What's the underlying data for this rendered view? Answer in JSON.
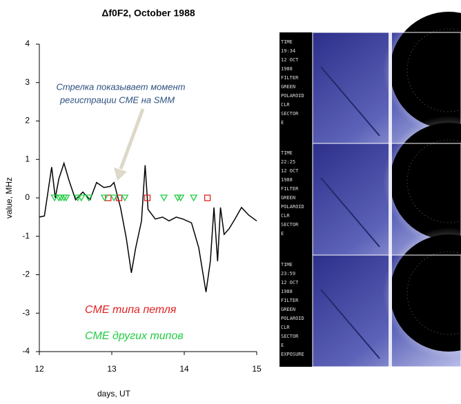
{
  "chart_data": {
    "type": "line",
    "title": "Δf0F2, October 1988",
    "x_label": "days, UT",
    "y_label": "value, MHz",
    "annotation": [
      "Стрелка показывает момент",
      "регистрации CME на SMM"
    ],
    "xlim": [
      12,
      15
    ],
    "xticks": [
      12,
      13,
      14,
      15
    ],
    "ylim": [
      -4,
      4
    ],
    "yticks": [
      -4,
      -3,
      -2,
      -1,
      0,
      1,
      2,
      3,
      4
    ],
    "series": [
      {
        "color": "#000000",
        "marker": "none",
        "x": [
          12.0,
          12.07,
          12.17,
          12.22,
          12.27,
          12.34,
          12.41,
          12.5,
          12.6,
          12.7,
          12.79,
          12.89,
          12.98,
          13.03,
          13.12,
          13.2,
          13.27,
          13.33,
          13.41,
          13.46,
          13.5,
          13.6,
          13.7,
          13.79,
          13.89,
          13.98,
          14.1,
          14.2,
          14.3,
          14.36,
          14.41,
          14.46,
          14.5,
          14.55,
          14.62,
          14.7,
          14.79,
          14.89,
          15.0
        ],
        "values": [
          -0.5,
          -0.47,
          0.8,
          0.0,
          0.5,
          0.9,
          0.45,
          -0.05,
          0.15,
          -0.05,
          0.4,
          0.27,
          0.3,
          0.4,
          -0.25,
          -1.05,
          -1.95,
          -1.3,
          -0.6,
          0.85,
          -0.3,
          -0.55,
          -0.5,
          -0.6,
          -0.5,
          -0.55,
          -0.65,
          -1.3,
          -2.45,
          -1.65,
          -0.25,
          -1.65,
          -0.25,
          -0.95,
          -0.8,
          -0.55,
          -0.25,
          -0.45,
          -0.6
        ]
      },
      {
        "name": "CME типа петля",
        "color": "#e02020",
        "marker": "square",
        "x": [
          12.95,
          13.1,
          13.49,
          14.32
        ],
        "values": [
          0,
          0,
          0,
          0
        ]
      },
      {
        "name": "CME других типов",
        "color": "#22cc44",
        "marker": "triangle",
        "x": [
          12.21,
          12.27,
          12.3,
          12.34,
          12.37,
          12.53,
          12.58,
          12.68,
          12.9,
          13.03,
          13.18,
          13.72,
          13.91,
          13.95,
          14.13
        ],
        "values": [
          0,
          0,
          0,
          0,
          0,
          0,
          0,
          0,
          0,
          0,
          0,
          0,
          0,
          0,
          0
        ]
      }
    ]
  },
  "images": [
    {
      "lines": [
        "TIME",
        "19:34",
        "12 OCT",
        "1988",
        "FILTER",
        "GREEN",
        "POLAROID",
        "CLR",
        "SECTOR",
        "E"
      ]
    },
    {
      "lines": [
        "TIME",
        "22:25",
        "12 OCT",
        "1988",
        "FILTER",
        "GREEN",
        "POLAROID",
        "CLR",
        "SECTOR",
        "E"
      ]
    },
    {
      "lines": [
        "TIME",
        "23:59",
        "12 OCT",
        "1988",
        "FILTER",
        "GREEN",
        "POLAROID",
        "CLR",
        "SECTOR",
        "E",
        "EXPOSURE"
      ]
    }
  ]
}
